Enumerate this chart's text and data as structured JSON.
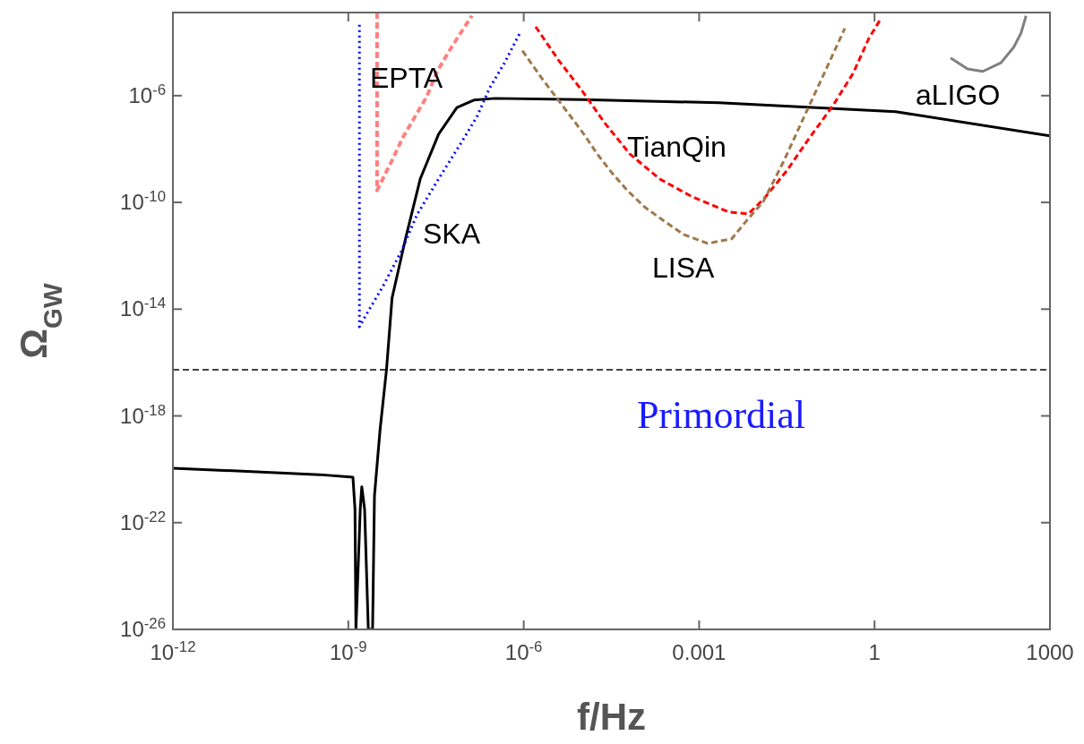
{
  "chart_data": {
    "type": "line",
    "xlabel": "f/Hz",
    "ylabel": "Ω$_{GW}$",
    "log": "xy",
    "xlim": [
      1e-12,
      1000
    ],
    "ylim": [
      1e-26,
      0.0013
    ],
    "xticks": [
      {
        "value": 1e-12,
        "label": "10$^{-12}$"
      },
      {
        "value": 1e-09,
        "label": "10$^{-9}$"
      },
      {
        "value": 1e-06,
        "label": "10$^{-6}$"
      },
      0.001,
      1,
      1000
    ],
    "yticks": [
      {
        "value": 1e-26,
        "label": "10$^{-26}$"
      },
      {
        "value": 1e-22,
        "label": "10$^{-22}$"
      },
      {
        "value": 1e-18,
        "label": "10$^{-18}$"
      },
      {
        "value": 1e-14,
        "label": "10$^{-14}$"
      },
      {
        "value": 1e-10,
        "label": "10$^{-10}$"
      },
      {
        "value": 1e-06,
        "label": "10$^{-6}$"
      }
    ],
    "series": [
      {
        "color": "#000000",
        "line_style": "solid",
        "x": [
          1e-12,
          3.2e-10,
          1.2e-09,
          1.3e-09,
          1.35e-09,
          1.6e-09,
          1.7e-09,
          1.9e-09,
          2.2e-09,
          2.6e-09,
          2.8e-09,
          3.5e-09,
          4.5e-09,
          5.6e-09,
          9.5e-09,
          1.7e-08,
          3.5e-08,
          7.2e-08,
          1.4e-07,
          3.2e-07,
          1e-05,
          0.0022,
          2.3,
          1000
        ],
        "values": [
          1.1e-20,
          6.3e-21,
          5e-21,
          3.2e-22,
          1e-26,
          3.2e-22,
          2.2e-21,
          3.2e-22,
          1e-26,
          1e-26,
          1e-21,
          3.2e-19,
          5.4e-17,
          2.6e-14,
          4.3e-12,
          7.6e-10,
          3.6e-08,
          3.6e-07,
          6.8e-07,
          7.9e-07,
          7.1e-07,
          5.4e-07,
          2.5e-07,
          3.1e-08
        ]
      },
      {
        "name": "EPTA",
        "color": "#ff8080",
        "line_style": "dashed",
        "x": [
          3.1e-09,
          3.1e-09,
          5.5e-09,
          8.7e-09,
          1.4e-08,
          2.2e-08,
          3.3e-08,
          5e-08,
          8.3e-08,
          1.3e-07
        ],
        "values": [
          0.0013,
          2.8e-10,
          3.5e-09,
          2.9e-08,
          1.7e-07,
          9.3e-07,
          8.1e-06,
          3.8e-05,
          0.00022,
          0.00098
        ]
      },
      {
        "name": "SKA",
        "color": "#0000ff",
        "line_style": "dotted",
        "x": [
          1.55e-09,
          1.55e-09,
          2.1e-09,
          3.9e-09,
          8.1e-09,
          1.5e-08,
          3.5e-08,
          8.5e-08,
          1.6e-07,
          2.6e-07,
          4.7e-07,
          8.5e-07
        ],
        "values": [
          0.00045,
          2.2e-15,
          7.1e-15,
          7.1e-14,
          1.5e-12,
          3.5e-11,
          7.6e-10,
          1.7e-08,
          1.7e-07,
          1.9e-06,
          1.7e-05,
          0.00021
        ]
      },
      {
        "name": "TianQin",
        "color": "#ff0000",
        "line_style": "dashed",
        "x": [
          1.6e-06,
          3.9e-06,
          1e-05,
          2.4e-05,
          6.5e-05,
          0.00021,
          0.00077,
          0.0032,
          0.0069,
          0.0126,
          0.032,
          0.076,
          0.195,
          0.43,
          0.8,
          1.23
        ],
        "values": [
          0.00038,
          2.2e-05,
          1.5e-06,
          9.8e-08,
          6.6e-09,
          7.6e-10,
          1.6e-10,
          4.4e-11,
          3.7e-11,
          1.3e-10,
          1.6e-09,
          2.5e-08,
          4.3e-07,
          6.9e-06,
          0.00014,
          0.00066
        ]
      },
      {
        "name": "LISA",
        "color": "#a0784a",
        "line_style": "dashed",
        "x": [
          9.5e-07,
          1.9e-06,
          3.5e-06,
          6.3e-06,
          1.07e-05,
          1.8e-05,
          3.2e-05,
          5.9e-05,
          0.00012,
          0.00026,
          0.00054,
          0.0014,
          0.0036,
          0.0064,
          0.0126,
          0.028,
          0.063,
          0.138,
          0.31
        ],
        "values": [
          4.8e-05,
          5.5e-06,
          9.3e-07,
          1.7e-07,
          3.6e-08,
          6.6e-09,
          1.3e-09,
          2.8e-10,
          6.4e-11,
          1.9e-11,
          6.3e-12,
          2.9e-12,
          4.3e-12,
          2e-11,
          1.1e-10,
          3.5e-09,
          1.7e-07,
          6.9e-06,
          0.00033
        ]
      },
      {
        "name": "aLIGO",
        "color": "#808080",
        "line_style": "solid",
        "x": [
          20,
          39,
          71,
          145,
          240,
          320,
          390
        ],
        "values": [
          2.6e-05,
          1e-05,
          8.1e-06,
          1.7e-05,
          6.5e-05,
          0.00022,
          0.00098
        ]
      }
    ],
    "ref_lines": [
      {
        "axis": "y",
        "value": 5.4e-17,
        "color": "#444444",
        "line_style": "dashed"
      }
    ],
    "annotations": [
      "Primordial"
    ]
  }
}
